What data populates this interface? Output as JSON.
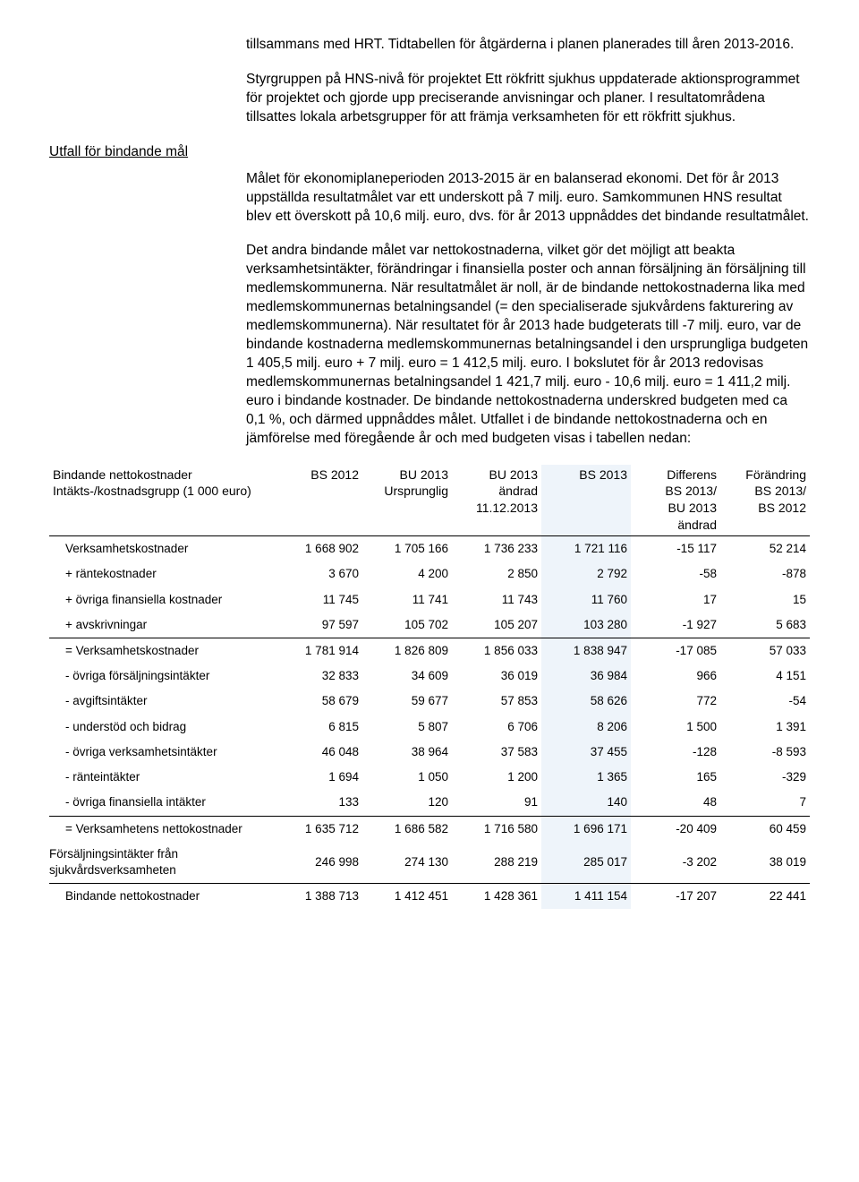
{
  "paragraphs": {
    "p1": "tillsammans med HRT. Tidtabellen för åtgärderna i planen planerades till åren 2013-2016.",
    "p2": "Styrgruppen på HNS-nivå för projektet Ett rökfritt sjukhus uppdaterade aktionsprogrammet för projektet och gjorde upp preciserande anvisningar och planer. I resultatområdena tillsattes lokala arbetsgrupper för att främja verksamheten för ett rökfritt sjukhus.",
    "p3": "Målet för ekonomiplaneperioden 2013-2015 är en balanserad ekonomi. Det för år 2013 uppställda resultatmålet var ett underskott på 7 milj. euro. Samkommunen HNS resultat blev ett överskott på 10,6 milj. euro, dvs. för år 2013 uppnåddes det bindande resultatmålet.",
    "p4": "Det andra bindande målet var nettokostnaderna, vilket gör det möjligt att beakta verksamhetsintäkter, förändringar i finansiella poster och annan försäljning än försäljning till medlemskommunerna. När resultatmålet är noll, är de bindande nettokostnaderna lika med medlemskommunernas betalningsandel (= den specialiserade sjukvårdens fakturering av medlemskommunerna). När resultatet för år 2013 hade budgeterats till -7 milj. euro, var de bindande kostnaderna medlemskommunernas betalningsandel i den ursprungliga budgeten 1 405,5 milj. euro + 7 milj. euro = 1 412,5 milj. euro. I bokslutet för år 2013 redovisas medlemskommunernas betalningsandel 1 421,7 milj. euro - 10,6 milj. euro = 1 411,2 milj. euro i bindande kostnader. De bindande nettokostnaderna underskred budgeten med ca 0,1 %, och därmed uppnåddes målet. Utfallet i de bindande nettokostnaderna och en jämförelse med föregående år och med budgeten visas i tabellen nedan:"
  },
  "side_heading": "Utfall för bindande mål",
  "table": {
    "header": {
      "h0a": "Bindande nettokostnader",
      "h0b": "Intäkts-/kostnadsgrupp (1 000 euro)",
      "h1": "BS 2012",
      "h2a": "BU 2013",
      "h2b": "Ursprunglig",
      "h3a": "BU 2013",
      "h3b": "ändrad",
      "h3c": "11.12.2013",
      "h4": "BS 2013",
      "h5a": "Differens",
      "h5b": "BS 2013/",
      "h5c": "BU 2013",
      "h5d": "ändrad",
      "h6a": "Förändring",
      "h6b": "BS 2013/",
      "h6c": "BS 2012"
    },
    "rows": [
      {
        "label": "Verksamhetskostnader",
        "ind": "indent",
        "v": [
          "1 668 902",
          "1 705 166",
          "1 736 233",
          "1 721 116",
          "-15 117",
          "52 214"
        ]
      },
      {
        "label": "+ räntekostnader",
        "ind": "indent",
        "v": [
          "3 670",
          "4 200",
          "2 850",
          "2 792",
          "-58",
          "-878"
        ]
      },
      {
        "label": "+ övriga finansiella kostnader",
        "ind": "indent",
        "v": [
          "11 745",
          "11 741",
          "11 743",
          "11 760",
          "17",
          "15"
        ]
      },
      {
        "label": "+ avskrivningar",
        "ind": "indent",
        "v": [
          "97 597",
          "105 702",
          "105 207",
          "103 280",
          "-1 927",
          "5 683"
        ],
        "bottom": true
      },
      {
        "label": "= Verksamhetskostnader",
        "ind": "indent",
        "v": [
          "1 781 914",
          "1 826 809",
          "1 856 033",
          "1 838 947",
          "-17 085",
          "57 033"
        ]
      },
      {
        "label": "- övriga försäljningsintäkter",
        "ind": "indent",
        "v": [
          "32 833",
          "34 609",
          "36 019",
          "36 984",
          "966",
          "4 151"
        ]
      },
      {
        "label": "- avgiftsintäkter",
        "ind": "indent",
        "v": [
          "58 679",
          "59 677",
          "57 853",
          "58 626",
          "772",
          "-54"
        ]
      },
      {
        "label": "- understöd och bidrag",
        "ind": "indent",
        "v": [
          "6 815",
          "5 807",
          "6 706",
          "8 206",
          "1 500",
          "1 391"
        ]
      },
      {
        "label": "- övriga verksamhetsintäkter",
        "ind": "indent",
        "v": [
          "46 048",
          "38 964",
          "37 583",
          "37 455",
          "-128",
          "-8 593"
        ]
      },
      {
        "label": "- ränteintäkter",
        "ind": "indent",
        "v": [
          "1 694",
          "1 050",
          "1 200",
          "1 365",
          "165",
          "-329"
        ]
      },
      {
        "label": "- övriga finansiella intäkter",
        "ind": "indent",
        "v": [
          "133",
          "120",
          "91",
          "140",
          "48",
          "7"
        ],
        "bottom": true
      },
      {
        "label": "= Verksamhetens nettokostnader",
        "ind": "indent",
        "v": [
          "1 635 712",
          "1 686 582",
          "1 716 580",
          "1 696 171",
          "-20 409",
          "60 459"
        ]
      },
      {
        "label": "Försäljningsintäkter från sjukvårdsverksamheten",
        "ind": "indent0",
        "v": [
          "246 998",
          "274 130",
          "288 219",
          "285 017",
          "-3 202",
          "38 019"
        ],
        "bottom": true
      },
      {
        "label": "Bindande nettokostnader",
        "ind": "indent",
        "v": [
          "1 388 713",
          "1 412 451",
          "1 428 361",
          "1 411 154",
          "-17 207",
          "22 441"
        ]
      }
    ]
  },
  "style": {
    "hl_color": "#eef4fa"
  }
}
